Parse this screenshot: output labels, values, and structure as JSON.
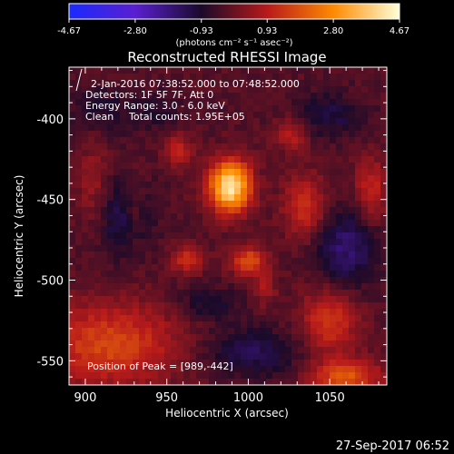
{
  "chart_data": {
    "type": "heatmap",
    "title": "Reconstructed RHESSI Image",
    "xlabel": "Heliocentric X (arcsec)",
    "ylabel": "Heliocentric Y (arcsec)",
    "xlim": [
      890,
      1085
    ],
    "ylim": [
      -565,
      -368
    ],
    "x_ticks": [
      900,
      950,
      1000,
      1050
    ],
    "y_ticks": [
      -400,
      -450,
      -500,
      -550
    ],
    "colorbar": {
      "ticks": [
        "-4.67",
        "-2.80",
        "-0.93",
        "0.93",
        "2.80",
        "4.67"
      ],
      "range": [
        -4.67,
        4.67
      ],
      "unit_label": "(photons cm⁻² s⁻¹ asec⁻²)",
      "colors": [
        "#1a2aff",
        "#5a1fd0",
        "#1a0a2a",
        "#b81a1a",
        "#ff8a00",
        "#ffffd8"
      ]
    },
    "annotations": {
      "time_range": "2-Jan-2016 07:38:52.000 to 07:48:52.000",
      "detectors": "Detectors: 1F 5F 7F, Att 0",
      "energy_range": "Energy Range: 3.0 - 6.0 keV",
      "method": "Clean",
      "total_counts": "Total counts: 1.95E+05",
      "peak": "Position of Peak = [989,-442]"
    },
    "peak_position": [
      989,
      -442
    ],
    "peak_value": 4.67,
    "features": [
      {
        "x": 989,
        "y": -442,
        "value": 4.6,
        "sx": 9,
        "sy": 11
      },
      {
        "x": 1000,
        "y": -488,
        "value": 2.0,
        "sx": 8,
        "sy": 6
      },
      {
        "x": 963,
        "y": -487,
        "value": 1.6,
        "sx": 7,
        "sy": 6
      },
      {
        "x": 957,
        "y": -420,
        "value": 1.3,
        "sx": 6,
        "sy": 7
      },
      {
        "x": 1035,
        "y": -455,
        "value": 1.6,
        "sx": 9,
        "sy": 14
      },
      {
        "x": 1027,
        "y": -410,
        "value": 1.2,
        "sx": 7,
        "sy": 7
      },
      {
        "x": 1075,
        "y": -445,
        "value": 1.4,
        "sx": 7,
        "sy": 14
      },
      {
        "x": 930,
        "y": -455,
        "value": 0.9,
        "sx": 5,
        "sy": 16
      },
      {
        "x": 915,
        "y": -540,
        "value": 1.9,
        "sx": 30,
        "sy": 18
      },
      {
        "x": 1050,
        "y": -525,
        "value": 1.7,
        "sx": 12,
        "sy": 14
      },
      {
        "x": 1060,
        "y": -560,
        "value": 2.1,
        "sx": 15,
        "sy": 8
      },
      {
        "x": 905,
        "y": -440,
        "value": 0.8,
        "sx": 7,
        "sy": 18
      },
      {
        "x": 1010,
        "y": -505,
        "value": 1.0,
        "sx": 5,
        "sy": 7
      },
      {
        "x": 925,
        "y": -460,
        "value": -1.3,
        "sx": 11,
        "sy": 17
      },
      {
        "x": 1060,
        "y": -480,
        "value": -1.4,
        "sx": 14,
        "sy": 18
      },
      {
        "x": 1002,
        "y": -545,
        "value": -1.2,
        "sx": 20,
        "sy": 10
      },
      {
        "x": 910,
        "y": -395,
        "value": -0.7,
        "sx": 14,
        "sy": 10
      },
      {
        "x": 1050,
        "y": -398,
        "value": -0.9,
        "sx": 14,
        "sy": 10
      },
      {
        "x": 975,
        "y": -515,
        "value": -0.8,
        "sx": 14,
        "sy": 8
      },
      {
        "x": 945,
        "y": -395,
        "value": -0.6,
        "sx": 10,
        "sy": 8
      }
    ]
  },
  "footer": {
    "timestamp": "27-Sep-2017 06:52"
  }
}
